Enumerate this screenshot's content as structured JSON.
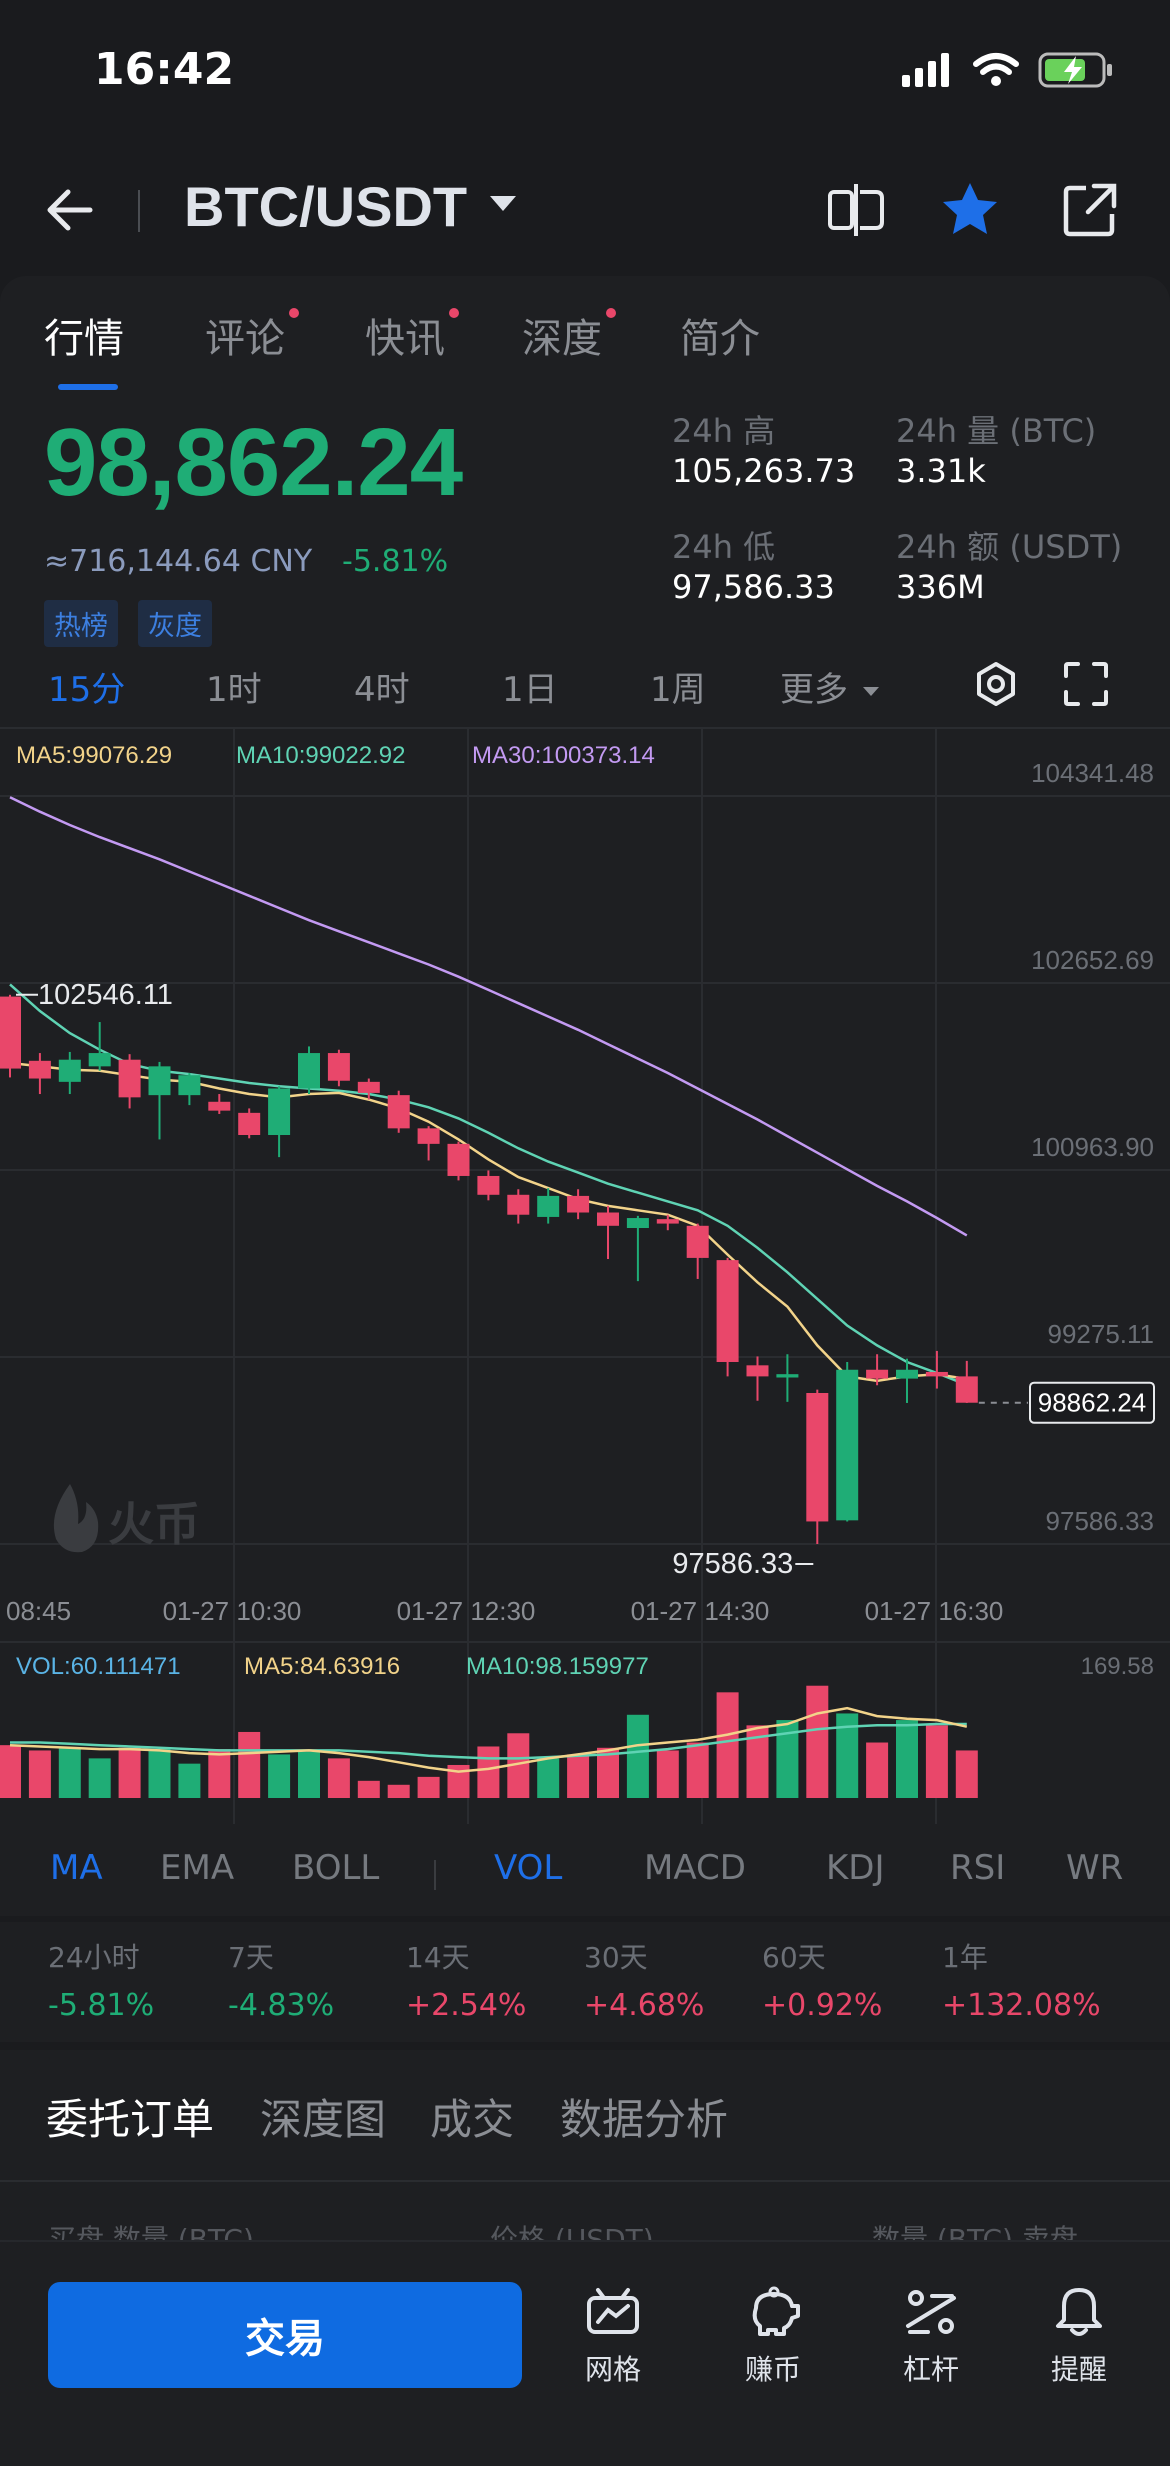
{
  "status_bar": {
    "time": "16:42"
  },
  "header": {
    "pair": "BTC/USDT"
  },
  "tabs": [
    {
      "label": "行情",
      "active": true,
      "dot": false
    },
    {
      "label": "评论",
      "active": false,
      "dot": true
    },
    {
      "label": "快讯",
      "active": false,
      "dot": true
    },
    {
      "label": "深度",
      "active": false,
      "dot": true
    },
    {
      "label": "简介",
      "active": false,
      "dot": false
    }
  ],
  "ticker": {
    "price": "98,862.24",
    "cny": "≈716,144.64 CNY",
    "change": "-5.81%",
    "tags": [
      "热榜",
      "灰度"
    ],
    "stats": {
      "high_label": "24h 高",
      "high": "105,263.73",
      "vol_label": "24h 量 (BTC)",
      "vol": "3.31k",
      "low_label": "24h 低",
      "low": "97,586.33",
      "amt_label": "24h 额 (USDT)",
      "amt": "336M"
    }
  },
  "periods": [
    "15分",
    "1时",
    "4时",
    "1日",
    "1周",
    "更多"
  ],
  "active_period": "15分",
  "chart_data": {
    "type": "candlestick",
    "ma_labels": {
      "ma5": "MA5:99076.29",
      "ma10": "MA10:99022.92",
      "ma30": "MA30:100373.14"
    },
    "y_ticks": [
      "104341.48",
      "102652.69",
      "100963.90",
      "99275.11",
      "97586.33"
    ],
    "x_ticks": [
      "08:45",
      "01-27 10:30",
      "01-27 12:30",
      "01-27 14:30",
      "01-27 16:30"
    ],
    "high_marker": "102546.11",
    "low_marker": "97586.33",
    "current_price": "98862.24",
    "ylim": [
      97586.33,
      104341.48
    ],
    "candles": [
      [
        102530,
        101880,
        102546.11,
        101800
      ],
      [
        101950,
        101790,
        102020,
        101650
      ],
      [
        101760,
        101960,
        102030,
        101650
      ],
      [
        101900,
        102020,
        102300,
        101860
      ],
      [
        101960,
        101620,
        102010,
        101520
      ],
      [
        101640,
        101900,
        101940,
        101240
      ],
      [
        101640,
        101820,
        101840,
        101550
      ],
      [
        101580,
        101500,
        101650,
        101470
      ],
      [
        101480,
        101280,
        101520,
        101250
      ],
      [
        101280,
        101700,
        101720,
        101080
      ],
      [
        101700,
        102020,
        102080,
        101650
      ],
      [
        102020,
        101770,
        102050,
        101720
      ],
      [
        101760,
        101660,
        101790,
        101600
      ],
      [
        101640,
        101340,
        101680,
        101300
      ],
      [
        101340,
        101200,
        101360,
        101050
      ],
      [
        101200,
        100910,
        101220,
        100870
      ],
      [
        100910,
        100740,
        100960,
        100690
      ],
      [
        100740,
        100560,
        100790,
        100480
      ],
      [
        100540,
        100730,
        100800,
        100480
      ],
      [
        100730,
        100580,
        100790,
        100520
      ],
      [
        100580,
        100460,
        100640,
        100160
      ],
      [
        100440,
        100530,
        100550,
        99960
      ],
      [
        100520,
        100480,
        100560,
        100420
      ],
      [
        100460,
        100170,
        100480,
        99980
      ],
      [
        100150,
        99230,
        100170,
        99100
      ],
      [
        99200,
        99100,
        99280,
        98880
      ],
      [
        99090,
        99120,
        99300,
        98870
      ],
      [
        98950,
        97790,
        98980,
        97586.33
      ],
      [
        97800,
        99160,
        99230,
        97790
      ],
      [
        99160,
        99080,
        99300,
        99020
      ],
      [
        99080,
        99160,
        99260,
        98860
      ],
      [
        99140,
        99100,
        99330,
        98990
      ],
      [
        99100,
        98862.24,
        99240,
        98860
      ]
    ],
    "ma5": [
      101930,
      101900,
      101870,
      101860,
      101820,
      101780,
      101760,
      101700,
      101650,
      101620,
      101650,
      101660,
      101600,
      101520,
      101400,
      101240,
      101060,
      100900,
      100800,
      100700,
      100640,
      100600,
      100560,
      100460,
      100200,
      99950,
      99730,
      99380,
      99100,
      99060,
      99100,
      99120,
      99076.29
    ],
    "ma10": [
      102640,
      102400,
      102200,
      102050,
      101920,
      101860,
      101830,
      101790,
      101750,
      101720,
      101700,
      101680,
      101650,
      101600,
      101530,
      101430,
      101300,
      101160,
      101040,
      100940,
      100840,
      100760,
      100680,
      100600,
      100460,
      100260,
      100040,
      99800,
      99560,
      99380,
      99230,
      99130,
      99022.92
    ],
    "ma30": [
      104330,
      104200,
      104080,
      103970,
      103870,
      103770,
      103660,
      103550,
      103440,
      103330,
      103220,
      103120,
      103020,
      102920,
      102820,
      102710,
      102590,
      102470,
      102350,
      102230,
      102100,
      101970,
      101840,
      101700,
      101560,
      101420,
      101270,
      101120,
      100970,
      100820,
      100680,
      100530,
      100373.14
    ],
    "volume": {
      "vol_label": "VOL:60.111471",
      "ma5_label": "MA5:84.63916",
      "ma10_label": "MA10:98.159977",
      "max_tick": "169.58",
      "ymax": 169.58,
      "bars": [
        80,
        72,
        76,
        60,
        76,
        74,
        52,
        74,
        100,
        66,
        70,
        60,
        26,
        20,
        32,
        50,
        78,
        98,
        60,
        66,
        76,
        126,
        72,
        84,
        160,
        110,
        118,
        170,
        128,
        84,
        118,
        110,
        72
      ],
      "ma5": [
        80,
        78,
        76,
        74,
        74,
        72,
        68,
        66,
        68,
        70,
        72,
        68,
        62,
        54,
        46,
        40,
        44,
        52,
        60,
        66,
        72,
        80,
        84,
        88,
        96,
        106,
        112,
        128,
        136,
        124,
        120,
        118,
        108
      ],
      "ma10": [
        84,
        84,
        82,
        80,
        78,
        76,
        74,
        72,
        72,
        72,
        72,
        72,
        70,
        68,
        64,
        62,
        60,
        60,
        62,
        64,
        66,
        70,
        74,
        80,
        86,
        92,
        98,
        104,
        108,
        110,
        110,
        112,
        112
      ]
    }
  },
  "indicators": {
    "main": [
      "MA",
      "EMA",
      "BOLL"
    ],
    "sub": [
      "VOL",
      "MACD",
      "KDJ",
      "RSI",
      "WR"
    ],
    "active_main": "MA",
    "active_sub": "VOL"
  },
  "performance": [
    {
      "label": "24小时",
      "value": "-5.81%"
    },
    {
      "label": "7天",
      "value": "-4.83%"
    },
    {
      "label": "14天",
      "value": "+2.54%"
    },
    {
      "label": "30天",
      "value": "+4.68%"
    },
    {
      "label": "60天",
      "value": "+0.92%"
    },
    {
      "label": "1年",
      "value": "+132.08%"
    }
  ],
  "order_tabs": [
    "委托订单",
    "深度图",
    "成交",
    "数据分析"
  ],
  "order_headers": [
    "买盘 数量 (BTC)",
    "价格 (USDT)",
    "数量 (BTC) 卖盘"
  ],
  "bottom_nav": {
    "trade_label": "交易",
    "grid": "网格",
    "earn": "赚币",
    "leverage": "杠杆",
    "alert": "提醒"
  },
  "watermark": "火币",
  "colors": {
    "up": "#e9476a",
    "down": "#1fad76",
    "accent": "#1e6fe8",
    "ma5": "#f2d38a",
    "ma10": "#5fd3b4",
    "ma30": "#c39af2"
  }
}
